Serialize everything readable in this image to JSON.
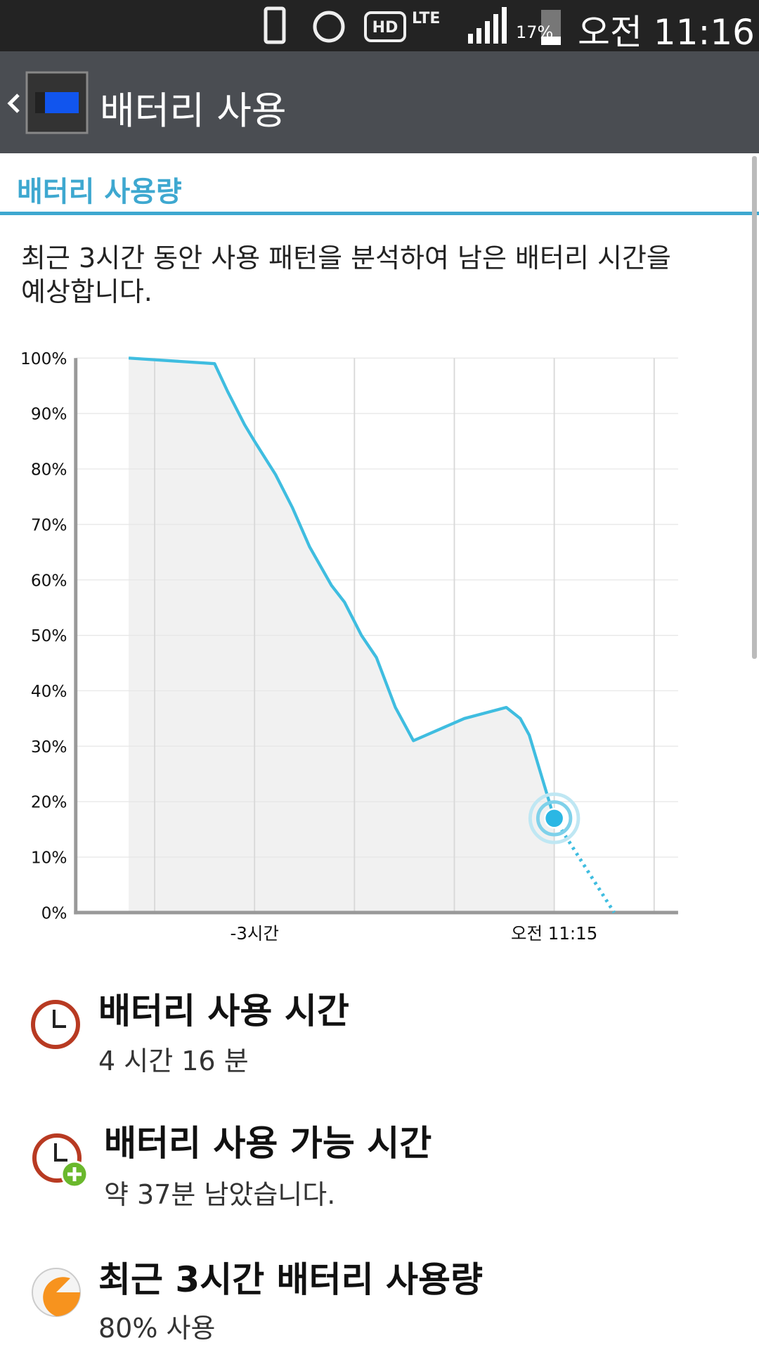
{
  "status_bar": {
    "network": "LTE",
    "battery": "17%",
    "time": "오전 11:16"
  },
  "action_bar": {
    "title": "배터리 사용"
  },
  "section": {
    "title": "배터리 사용량"
  },
  "description": [
    "최근 3시간 동안 사용 패턴을 분석하여 남은 배터리 시간을",
    "예상합니다."
  ],
  "chart_data": {
    "type": "line",
    "color": "#3fbde0",
    "x": [
      -4.26,
      -3.4,
      -3.27,
      -3.1,
      -3.0,
      -2.79,
      -2.62,
      -2.45,
      -2.23,
      -2.1,
      -1.93,
      -1.78,
      -1.59,
      -1.41,
      -0.9,
      -0.48,
      -0.34,
      -0.25,
      0
    ],
    "values": [
      100,
      99,
      94,
      88,
      85,
      79,
      73,
      66,
      59,
      56,
      50,
      46,
      37,
      31,
      35,
      37,
      35,
      32,
      17
    ],
    "projection": {
      "x": [
        0,
        0.6
      ],
      "values": [
        17,
        0
      ]
    },
    "xlim": [
      -4.79,
      1.24
    ],
    "ylim": [
      0,
      100
    ],
    "xticks": [
      {
        "value": -3,
        "label": "-3시간"
      },
      {
        "value": 0,
        "label": "오전 11:15"
      }
    ],
    "xgrid": [
      -4,
      -3,
      -2,
      -1,
      0,
      1
    ],
    "yticks": [
      {
        "value": 0,
        "label": "0%"
      },
      {
        "value": 10,
        "label": "10%"
      },
      {
        "value": 20,
        "label": "20%"
      },
      {
        "value": 30,
        "label": "30%"
      },
      {
        "value": 40,
        "label": "40%"
      },
      {
        "value": 50,
        "label": "50%"
      },
      {
        "value": 60,
        "label": "60%"
      },
      {
        "value": 70,
        "label": "70%"
      },
      {
        "value": 80,
        "label": "80%"
      },
      {
        "value": 90,
        "label": "90%"
      },
      {
        "value": 100,
        "label": "100%"
      }
    ],
    "grid": true
  },
  "items": [
    {
      "title": "배터리 사용 시간",
      "subtitle": "4 시간 16 분"
    },
    {
      "title": "배터리 사용 가능 시간",
      "subtitle": "약 37분 남았습니다."
    },
    {
      "title": "최근 3시간 배터리 사용량",
      "subtitle": "80% 사용"
    }
  ]
}
